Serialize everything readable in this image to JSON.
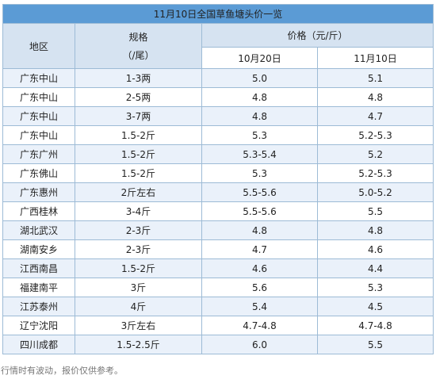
{
  "title": "11月10日全国草鱼塘头价一览",
  "headers": {
    "region": "地区",
    "spec_line1": "规格",
    "spec_line2": "（/尾）",
    "price_group": "价格（元/斤）",
    "date1": "10月20日",
    "date2": "11月10日"
  },
  "rows": [
    {
      "region": "广东中山",
      "spec": "1-3两",
      "p1": "5.0",
      "p2": "5.1"
    },
    {
      "region": "广东中山",
      "spec": "2-5两",
      "p1": "4.8",
      "p2": "4.8"
    },
    {
      "region": "广东中山",
      "spec": "3-7两",
      "p1": "4.8",
      "p2": "4.7"
    },
    {
      "region": "广东中山",
      "spec": "1.5-2斤",
      "p1": "5.3",
      "p2": "5.2-5.3"
    },
    {
      "region": "广东广州",
      "spec": "1.5-2斤",
      "p1": "5.3-5.4",
      "p2": "5.2"
    },
    {
      "region": "广东佛山",
      "spec": "1.5-2斤",
      "p1": "5.3",
      "p2": "5.2-5.3"
    },
    {
      "region": "广东惠州",
      "spec": "2斤左右",
      "p1": "5.5-5.6",
      "p2": "5.0-5.2"
    },
    {
      "region": "广西桂林",
      "spec": "3-4斤",
      "p1": "5.5-5.6",
      "p2": "5.5"
    },
    {
      "region": "湖北武汉",
      "spec": "2-3斤",
      "p1": "4.8",
      "p2": "4.8"
    },
    {
      "region": "湖南安乡",
      "spec": "2-3斤",
      "p1": "4.7",
      "p2": "4.6"
    },
    {
      "region": "江西南昌",
      "spec": "1.5-2斤",
      "p1": "4.6",
      "p2": "4.4"
    },
    {
      "region": "福建南平",
      "spec": "3斤",
      "p1": "5.6",
      "p2": "5.3"
    },
    {
      "region": "江苏泰州",
      "spec": "4斤",
      "p1": "5.4",
      "p2": "4.5"
    },
    {
      "region": "辽宁沈阳",
      "spec": "3斤左右",
      "p1": "4.7-4.8",
      "p2": "4.7-4.8"
    },
    {
      "region": "四川成都",
      "spec": "1.5-2.5斤",
      "p1": "6.0",
      "p2": "5.5"
    }
  ],
  "footer": "行情时有波动，报价仅供参考。",
  "colors": {
    "title_bg": "#5b9bd5",
    "header_bg": "#d6e3f1",
    "stripe_bg": "#eaf1fa",
    "border": "#9dbbd6"
  }
}
